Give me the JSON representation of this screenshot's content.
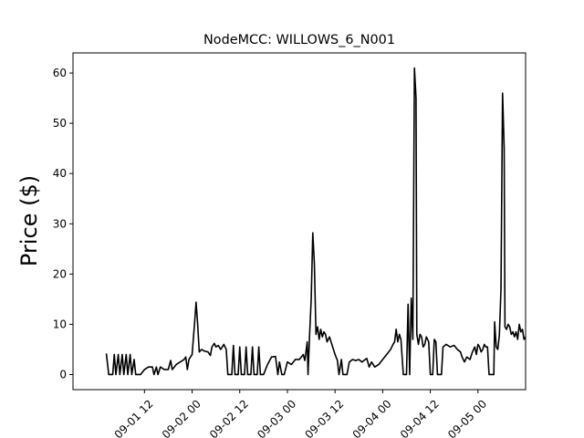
{
  "chart_data": {
    "type": "line",
    "title": "NodeMCC: WILLOWS_6_N001",
    "xlabel": "",
    "ylabel": "Price ($)",
    "x_unit": "hours",
    "xlim": [
      -9,
      48
    ],
    "ylim": [
      -3,
      64
    ],
    "y_ticks": [
      0,
      10,
      20,
      30,
      40,
      50,
      60
    ],
    "x_ticks": [
      {
        "value": 0,
        "label": "09-01 12"
      },
      {
        "value": 6,
        "label": "09-02 00"
      },
      {
        "value": 12,
        "label": "09-02 12"
      },
      {
        "value": 18,
        "label": "09-03 00"
      },
      {
        "value": 24,
        "label": "09-03 12"
      },
      {
        "value": 30,
        "label": "09-04 00"
      },
      {
        "value": 36,
        "label": "09-04 12"
      },
      {
        "value": 42,
        "label": "09-05 00"
      }
    ],
    "grid": false,
    "line_color": "#000000",
    "series": [
      {
        "values": [
          [
            -4.8,
            4.2
          ],
          [
            -4.5,
            0
          ],
          [
            -4.0,
            0
          ],
          [
            -3.8,
            4.0
          ],
          [
            -3.6,
            0
          ],
          [
            -3.3,
            4.0
          ],
          [
            -3.1,
            0
          ],
          [
            -2.8,
            4.0
          ],
          [
            -2.6,
            0
          ],
          [
            -2.3,
            4.0
          ],
          [
            -2.1,
            0
          ],
          [
            -1.8,
            4.0
          ],
          [
            -1.6,
            0
          ],
          [
            -1.3,
            3.0
          ],
          [
            -1.1,
            0
          ],
          [
            -0.5,
            0
          ],
          [
            0.0,
            1.0
          ],
          [
            0.5,
            1.5
          ],
          [
            1.0,
            1.5
          ],
          [
            1.2,
            0
          ],
          [
            1.5,
            1.5
          ],
          [
            1.7,
            0
          ],
          [
            2.0,
            1.5
          ],
          [
            2.5,
            1.0
          ],
          [
            3.0,
            1.0
          ],
          [
            3.3,
            2.8
          ],
          [
            3.5,
            1.0
          ],
          [
            4.0,
            2.0
          ],
          [
            4.5,
            2.5
          ],
          [
            5.0,
            3.0
          ],
          [
            5.2,
            3.5
          ],
          [
            5.4,
            1.0
          ],
          [
            5.6,
            3.0
          ],
          [
            5.8,
            3.5
          ],
          [
            6.0,
            4.0
          ],
          [
            6.3,
            10.0
          ],
          [
            6.5,
            14.4
          ],
          [
            6.7,
            10.0
          ],
          [
            6.9,
            4.5
          ],
          [
            7.2,
            5.0
          ],
          [
            7.5,
            4.7
          ],
          [
            8.0,
            4.5
          ],
          [
            8.3,
            3.8
          ],
          [
            8.5,
            5.5
          ],
          [
            8.8,
            6.2
          ],
          [
            9.0,
            5.5
          ],
          [
            9.3,
            5.8
          ],
          [
            9.6,
            5.0
          ],
          [
            10.0,
            6.0
          ],
          [
            10.3,
            5.0
          ],
          [
            10.5,
            0
          ],
          [
            11.0,
            0
          ],
          [
            11.2,
            5.8
          ],
          [
            11.4,
            0
          ],
          [
            11.8,
            0
          ],
          [
            12.0,
            5.5
          ],
          [
            12.2,
            0
          ],
          [
            12.6,
            0
          ],
          [
            12.8,
            5.5
          ],
          [
            13.0,
            0
          ],
          [
            13.4,
            0
          ],
          [
            13.6,
            5.5
          ],
          [
            13.8,
            0
          ],
          [
            14.2,
            0
          ],
          [
            14.4,
            5.5
          ],
          [
            14.6,
            0
          ],
          [
            15.0,
            0
          ],
          [
            15.5,
            2.0
          ],
          [
            16.0,
            3.5
          ],
          [
            16.5,
            3.6
          ],
          [
            16.8,
            0
          ],
          [
            17.0,
            2.5
          ],
          [
            17.3,
            0
          ],
          [
            17.6,
            0
          ],
          [
            18.0,
            2.5
          ],
          [
            18.5,
            2.0
          ],
          [
            19.0,
            3.0
          ],
          [
            19.5,
            3.0
          ],
          [
            20.0,
            4.0
          ],
          [
            20.2,
            2.8
          ],
          [
            20.5,
            6.5
          ],
          [
            20.6,
            0
          ],
          [
            20.8,
            8.0
          ],
          [
            21.0,
            15.0
          ],
          [
            21.2,
            28.2
          ],
          [
            21.4,
            22.0
          ],
          [
            21.6,
            8.0
          ],
          [
            21.8,
            9.5
          ],
          [
            22.0,
            7.0
          ],
          [
            22.2,
            9.0
          ],
          [
            22.4,
            7.5
          ],
          [
            22.6,
            8.5
          ],
          [
            22.8,
            8.0
          ],
          [
            23.0,
            6.5
          ],
          [
            23.3,
            7.5
          ],
          [
            23.6,
            6.0
          ],
          [
            24.0,
            4.0
          ],
          [
            24.3,
            2.8
          ],
          [
            24.5,
            0
          ],
          [
            24.8,
            3.0
          ],
          [
            25.0,
            0
          ],
          [
            25.5,
            0
          ],
          [
            25.8,
            2.5
          ],
          [
            26.2,
            3.0
          ],
          [
            26.6,
            2.8
          ],
          [
            27.0,
            3.0
          ],
          [
            27.4,
            2.5
          ],
          [
            27.8,
            3.0
          ],
          [
            28.0,
            3.2
          ],
          [
            28.3,
            1.5
          ],
          [
            28.6,
            2.5
          ],
          [
            29.0,
            1.5
          ],
          [
            29.5,
            2.0
          ],
          [
            30.0,
            3.0
          ],
          [
            30.5,
            4.0
          ],
          [
            31.0,
            5.0
          ],
          [
            31.3,
            6.0
          ],
          [
            31.5,
            6.5
          ],
          [
            31.7,
            9.0
          ],
          [
            31.9,
            6.5
          ],
          [
            32.1,
            8.0
          ],
          [
            32.3,
            7.0
          ],
          [
            32.6,
            0
          ],
          [
            33.0,
            0
          ],
          [
            33.2,
            14.0
          ],
          [
            33.4,
            0
          ],
          [
            33.6,
            15.2
          ],
          [
            33.8,
            7.0
          ],
          [
            34.0,
            61.0
          ],
          [
            34.2,
            55.0
          ],
          [
            34.3,
            8.0
          ],
          [
            34.5,
            6.0
          ],
          [
            34.7,
            8.0
          ],
          [
            34.9,
            7.5
          ],
          [
            35.1,
            5.5
          ],
          [
            35.3,
            6.0
          ],
          [
            35.5,
            7.5
          ],
          [
            35.8,
            6.5
          ],
          [
            36.0,
            0
          ],
          [
            36.3,
            0
          ],
          [
            36.5,
            7.0
          ],
          [
            36.7,
            6.5
          ],
          [
            36.9,
            0
          ],
          [
            37.2,
            0
          ],
          [
            37.4,
            0
          ],
          [
            37.6,
            5.5
          ],
          [
            38.0,
            6.0
          ],
          [
            38.5,
            5.5
          ],
          [
            39.0,
            5.8
          ],
          [
            39.4,
            5.0
          ],
          [
            39.8,
            4.5
          ],
          [
            40.0,
            3.5
          ],
          [
            40.3,
            2.5
          ],
          [
            40.6,
            3.5
          ],
          [
            41.0,
            3.0
          ],
          [
            41.3,
            4.5
          ],
          [
            41.6,
            5.5
          ],
          [
            41.8,
            4.0
          ],
          [
            42.0,
            6.0
          ],
          [
            42.2,
            5.5
          ],
          [
            42.4,
            4.5
          ],
          [
            42.6,
            5.0
          ],
          [
            42.8,
            6.0
          ],
          [
            43.0,
            5.5
          ],
          [
            43.2,
            5.5
          ],
          [
            43.4,
            0
          ],
          [
            43.7,
            0
          ],
          [
            44.0,
            0
          ],
          [
            44.1,
            10.5
          ],
          [
            44.3,
            5.5
          ],
          [
            44.5,
            5.0
          ],
          [
            44.7,
            8.0
          ],
          [
            44.9,
            17.0
          ],
          [
            45.1,
            56.0
          ],
          [
            45.3,
            45.0
          ],
          [
            45.4,
            9.5
          ],
          [
            45.6,
            9.0
          ],
          [
            45.8,
            10.0
          ],
          [
            46.0,
            9.5
          ],
          [
            46.2,
            8.0
          ],
          [
            46.4,
            8.5
          ],
          [
            46.6,
            7.5
          ],
          [
            46.8,
            8.5
          ],
          [
            47.0,
            7.0
          ],
          [
            47.2,
            10.0
          ],
          [
            47.4,
            8.5
          ],
          [
            47.6,
            9.0
          ],
          [
            47.8,
            7.0
          ],
          [
            48.0,
            7.5
          ],
          [
            48.3,
            7.0
          ]
        ]
      }
    ]
  }
}
